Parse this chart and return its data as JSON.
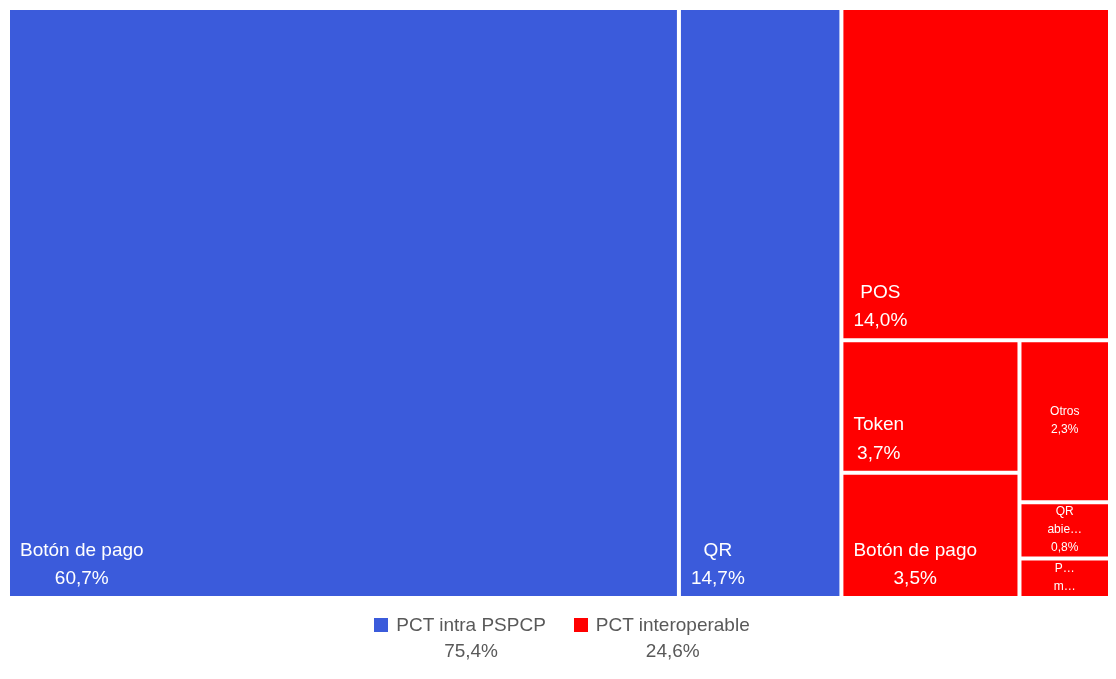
{
  "chart_data": {
    "type": "other",
    "legend": "bottom",
    "totals": [
      "75,4%",
      "24,6%"
    ],
    "categories": [
      "Botón de pago",
      "QR",
      "POS",
      "Token",
      "Botón de pago",
      "Otros",
      "QR abie…",
      "P… m…"
    ],
    "series": [
      {
        "name": "PCT intra PSPCP",
        "color": "#3b5bdb",
        "values": [
          60.7,
          14.7,
          null,
          null,
          null,
          null,
          null,
          null
        ],
        "value_labels": [
          "60,7%",
          "14,7%",
          null,
          null,
          null,
          null,
          null,
          null
        ]
      },
      {
        "name": "PCT interoperable",
        "color": "#ff0000",
        "values": [
          null,
          null,
          14.0,
          3.7,
          3.5,
          2.3,
          0.8,
          null
        ],
        "value_labels": [
          null,
          null,
          "14,0%",
          "3,7%",
          "3,5%",
          "2,3%",
          "0,8%",
          null
        ]
      }
    ]
  }
}
